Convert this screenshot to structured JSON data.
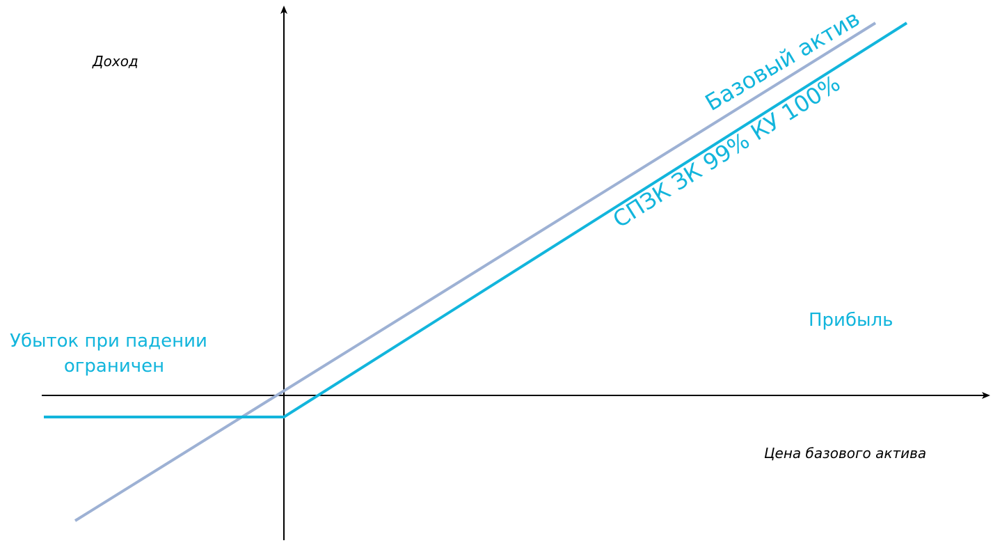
{
  "chart_data": {
    "type": "line",
    "xlabel": "Цена базового актива",
    "ylabel": "Доход",
    "series": [
      {
        "name": "Базовый актив",
        "color": "#9db1d4",
        "points": [
          [
            -300,
            -180
          ],
          [
            850,
            535
          ]
        ]
      },
      {
        "name": "СПЗК ЗК 99% КУ 100%",
        "color": "#12b5dc",
        "points": [
          [
            -345,
            -31
          ],
          [
            0,
            -31
          ],
          [
            895,
            535
          ]
        ]
      }
    ],
    "annotations": {
      "loss_line1": "Убыток при падении",
      "loss_line2": "ограничен",
      "profit": "Прибыль"
    },
    "axes": {
      "x_arrow": true,
      "y_arrow": true,
      "grid": false
    }
  }
}
